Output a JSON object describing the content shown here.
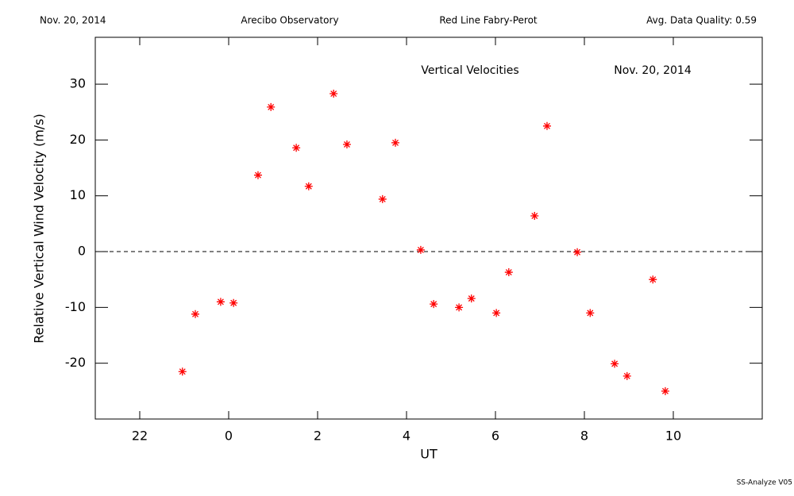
{
  "chart_data": {
    "type": "scatter",
    "header": [
      "Nov. 20, 2014",
      "Arecibo Observatory",
      "Red Line Fabry-Perot",
      "Avg. Data Quality: 0.59"
    ],
    "annotations": [
      "Vertical Velocities",
      "Nov. 20, 2014"
    ],
    "footer": "SS-Analyze V05",
    "x_label": "UT",
    "y_label": "Relative Vertical Wind Velocity (m/s)",
    "xlim": [
      -3,
      12
    ],
    "ylim": [
      -30,
      38.4
    ],
    "xticks": [
      {
        "value": -2,
        "label": "22"
      },
      0,
      2,
      4,
      6,
      8,
      10
    ],
    "yticks": [
      -20,
      -10,
      0,
      10,
      20,
      30
    ],
    "hline": 0,
    "series": [
      {
        "name": "Vertical Velocities",
        "color": "#ff0000",
        "x": [
          -1.04,
          -0.75,
          -0.18,
          0.11,
          0.66,
          0.95,
          1.52,
          1.8,
          2.36,
          2.66,
          3.46,
          3.75,
          4.32,
          4.61,
          5.18,
          5.46,
          6.02,
          6.3,
          6.88,
          7.16,
          7.84,
          8.13,
          8.68,
          8.96,
          9.54,
          9.82
        ],
        "values": [
          -21.5,
          -11.2,
          -9.0,
          -9.2,
          13.7,
          25.9,
          18.6,
          11.7,
          28.3,
          19.2,
          9.4,
          19.5,
          0.3,
          -9.4,
          -10.0,
          -8.4,
          -11.0,
          -3.7,
          6.4,
          22.5,
          -0.1,
          -11.0,
          -20.1,
          -22.3,
          -5.0,
          -25.0
        ]
      }
    ]
  }
}
